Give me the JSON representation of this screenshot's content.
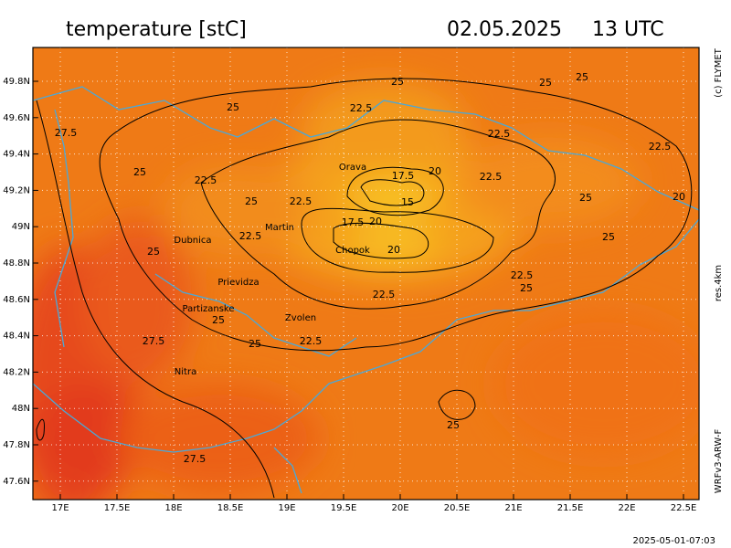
{
  "header": {
    "title": "temperature [stC]",
    "date": "02.05.2025",
    "time": "13 UTC"
  },
  "side_labels": {
    "copyright": "(c) FLYMET",
    "resolution": "res.4km",
    "model": "WRFv3-ARW-F"
  },
  "map": {
    "lon_labels": [
      "17E",
      "17.5E",
      "18E",
      "18.5E",
      "19E",
      "19.5E",
      "20E",
      "20.5E",
      "21E",
      "21.5E",
      "22E",
      "22.5E"
    ],
    "lat_labels": [
      "49.8N",
      "49.6N",
      "49.4N",
      "49.2N",
      "49N",
      "48.8N",
      "48.6N",
      "48.4N",
      "48.2N",
      "48N",
      "47.8N",
      "47.6N"
    ],
    "places": [
      "Orava",
      "Dubnica",
      "Martin",
      "Chopok",
      "Prievidza",
      "Partizanske",
      "Zvolen",
      "Nitra"
    ],
    "contour_labels": [
      "25",
      "25",
      "25",
      "27.5",
      "25",
      "22.5",
      "22.5",
      "25",
      "22.5",
      "17.5",
      "20",
      "22.5",
      "22.5",
      "25",
      "22.5",
      "15",
      "25",
      "20",
      "17.5",
      "20",
      "22.5",
      "25",
      "20",
      "25",
      "22.5",
      "25",
      "22.5",
      "25",
      "27.5",
      "25",
      "22.5",
      "25",
      "27.5"
    ]
  },
  "footer": {
    "timestamp": "2025-05-01-07:03"
  }
}
